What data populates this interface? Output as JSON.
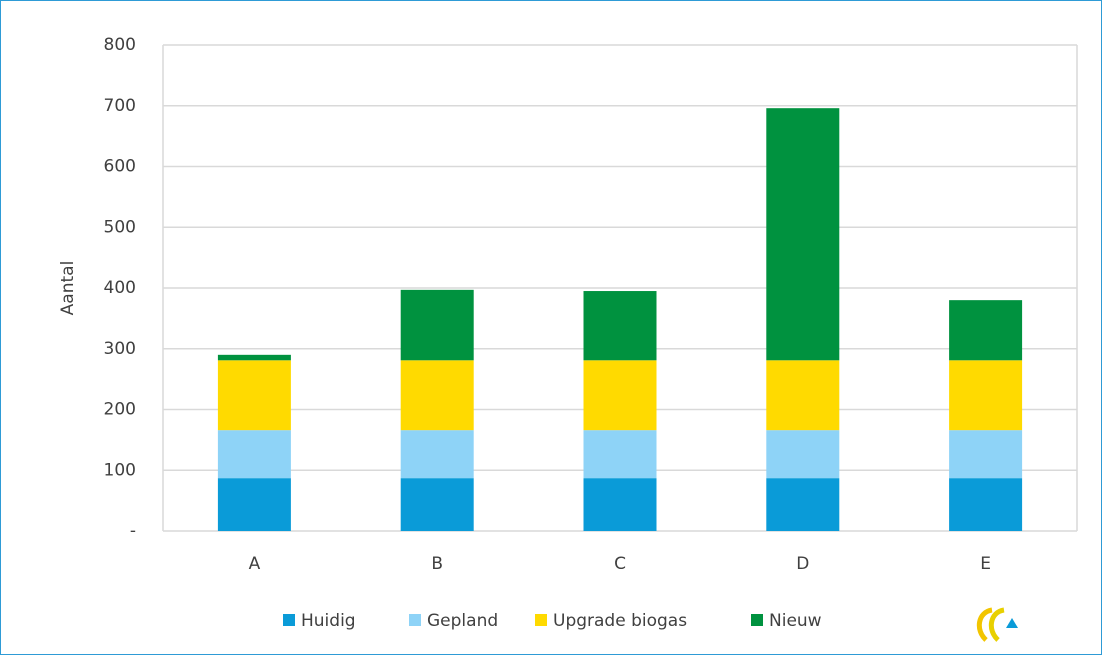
{
  "chart_data": {
    "type": "stacked_bar",
    "y_label": "Aantal",
    "categories": [
      "A",
      "B",
      "C",
      "D",
      "E"
    ],
    "series": [
      {
        "name": "Huidig",
        "color": "#0a9bd8",
        "values": [
          87,
          87,
          87,
          87,
          87
        ]
      },
      {
        "name": "Gepland",
        "color": "#8ed3f7",
        "values": [
          79,
          79,
          79,
          79,
          79
        ]
      },
      {
        "name": "Upgrade biogas",
        "color": "#ffda00",
        "values": [
          115,
          115,
          115,
          115,
          115
        ]
      },
      {
        "name": "Nieuw",
        "color": "#00923f",
        "values": [
          9,
          116,
          114,
          415,
          99
        ]
      }
    ],
    "ylim": [
      0,
      800
    ],
    "yticks": [
      {
        "value": 0,
        "label": "-"
      },
      100,
      200,
      300,
      400,
      500,
      600,
      700,
      800
    ],
    "grid": true,
    "legend": "bottom"
  }
}
